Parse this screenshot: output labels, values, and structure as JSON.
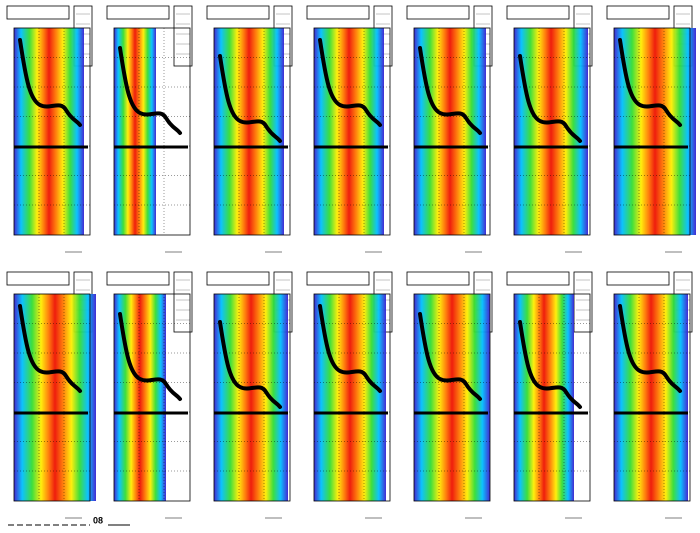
{
  "footer": {
    "label": "08"
  }
}
